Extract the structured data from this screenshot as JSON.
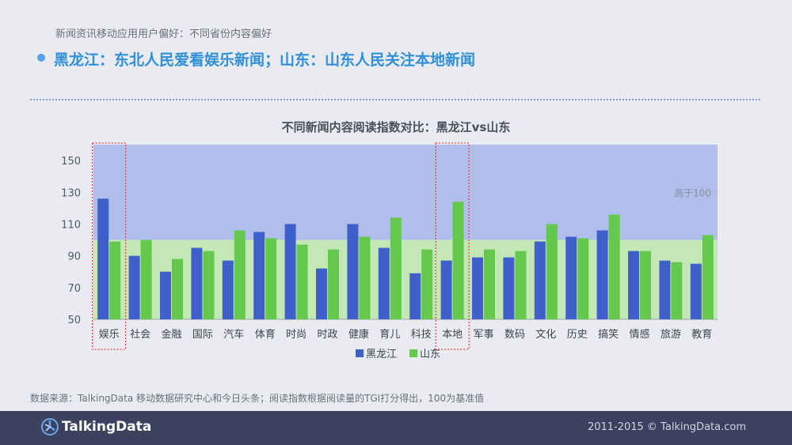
{
  "header": {
    "subtitle": "新闻资讯移动应用用户偏好：不同省份内容偏好",
    "headline": "黑龙江：东北人民爱看娱乐新闻；山东：山东人民关注本地新闻"
  },
  "colors": {
    "heilongjiang": "#3f5fcb",
    "shandong": "#64c84c",
    "above_band": "#afbeeb",
    "below_band": "#c3e8b6",
    "highlight_box": "#e0242b"
  },
  "chart_data": {
    "type": "bar",
    "title": "不同新闻内容阅读指数对比：黑龙江vs山东",
    "categories": [
      "娱乐",
      "社会",
      "金融",
      "国际",
      "汽车",
      "体育",
      "时尚",
      "时政",
      "健康",
      "育儿",
      "科技",
      "本地",
      "军事",
      "数码",
      "文化",
      "历史",
      "搞笑",
      "情感",
      "旅游",
      "教育"
    ],
    "series": [
      {
        "name": "黑龙江",
        "values": [
          126,
          90,
          80,
          95,
          87,
          105,
          110,
          82,
          110,
          95,
          79,
          87,
          89,
          89,
          99,
          102,
          106,
          93,
          87,
          85
        ]
      },
      {
        "name": "山东",
        "values": [
          99,
          100,
          88,
          93,
          106,
          101,
          97,
          94,
          102,
          114,
          94,
          124,
          94,
          93,
          110,
          101,
          116,
          93,
          86,
          103
        ]
      }
    ],
    "ylim": [
      50,
      160
    ],
    "yticks": [
      50,
      70,
      90,
      110,
      130,
      150
    ],
    "baseline": 100,
    "band_label": "高于100",
    "highlighted_categories": [
      "娱乐",
      "本地"
    ],
    "legend_position": "bottom"
  },
  "footer": {
    "source": "数据来源：TalkingData 移动数据研究中心和今日头条；阅读指数根据阅读量的TGI打分得出，100为基准值",
    "logo_text": "TalkingData",
    "copyright": "2011-2015 © TalkingData.com"
  }
}
